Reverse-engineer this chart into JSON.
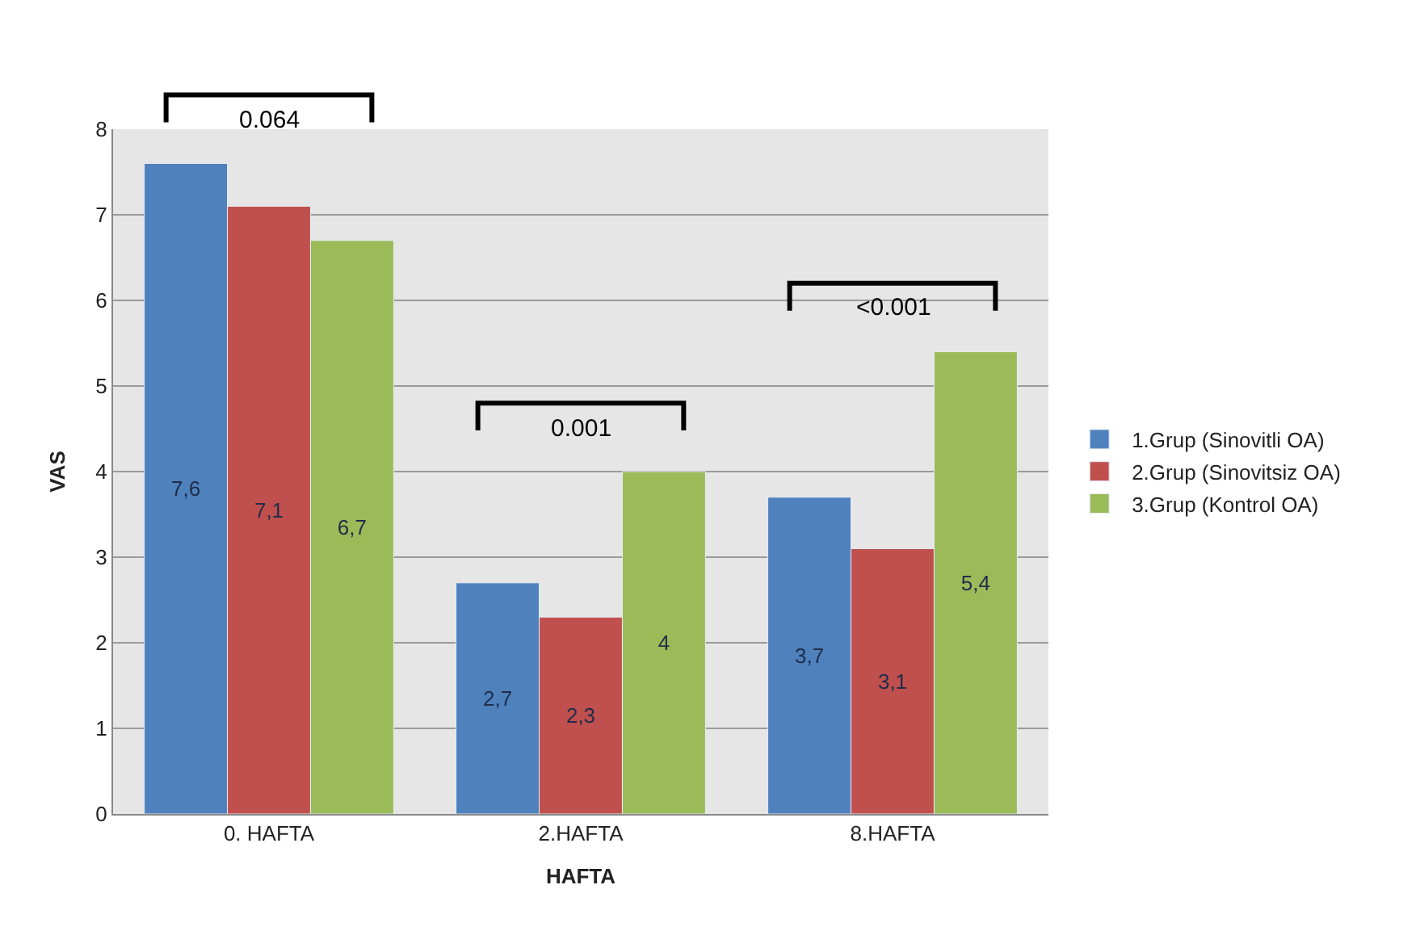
{
  "chart_data": {
    "type": "bar",
    "xlabel": "HAFTA",
    "ylabel": "VAS",
    "categories": [
      "0. HAFTA",
      "2.HAFTA",
      "8.HAFTA"
    ],
    "series": [
      {
        "name": "1.Grup (Sinovitli OA)",
        "color": "#4f81bd",
        "values": [
          7.6,
          2.7,
          3.7
        ],
        "value_labels": [
          "7,6",
          "2,7",
          "3,7"
        ]
      },
      {
        "name": "2.Grup (Sinovitsiz OA)",
        "color": "#c0504d",
        "values": [
          7.1,
          2.3,
          3.1
        ],
        "value_labels": [
          "7,1",
          "2,3",
          "3,1"
        ]
      },
      {
        "name": "3.Grup (Kontrol OA)",
        "color": "#9bbb59",
        "values": [
          6.7,
          4,
          5.4
        ],
        "value_labels": [
          "6,7",
          "4",
          "5,4"
        ]
      }
    ],
    "ylim": [
      0,
      8
    ],
    "yticks": [
      0,
      1,
      2,
      3,
      4,
      5,
      6,
      7,
      8
    ],
    "grid": "y",
    "legend": "right",
    "annotations": [
      "0.064",
      "0.001",
      "<0.001"
    ]
  }
}
